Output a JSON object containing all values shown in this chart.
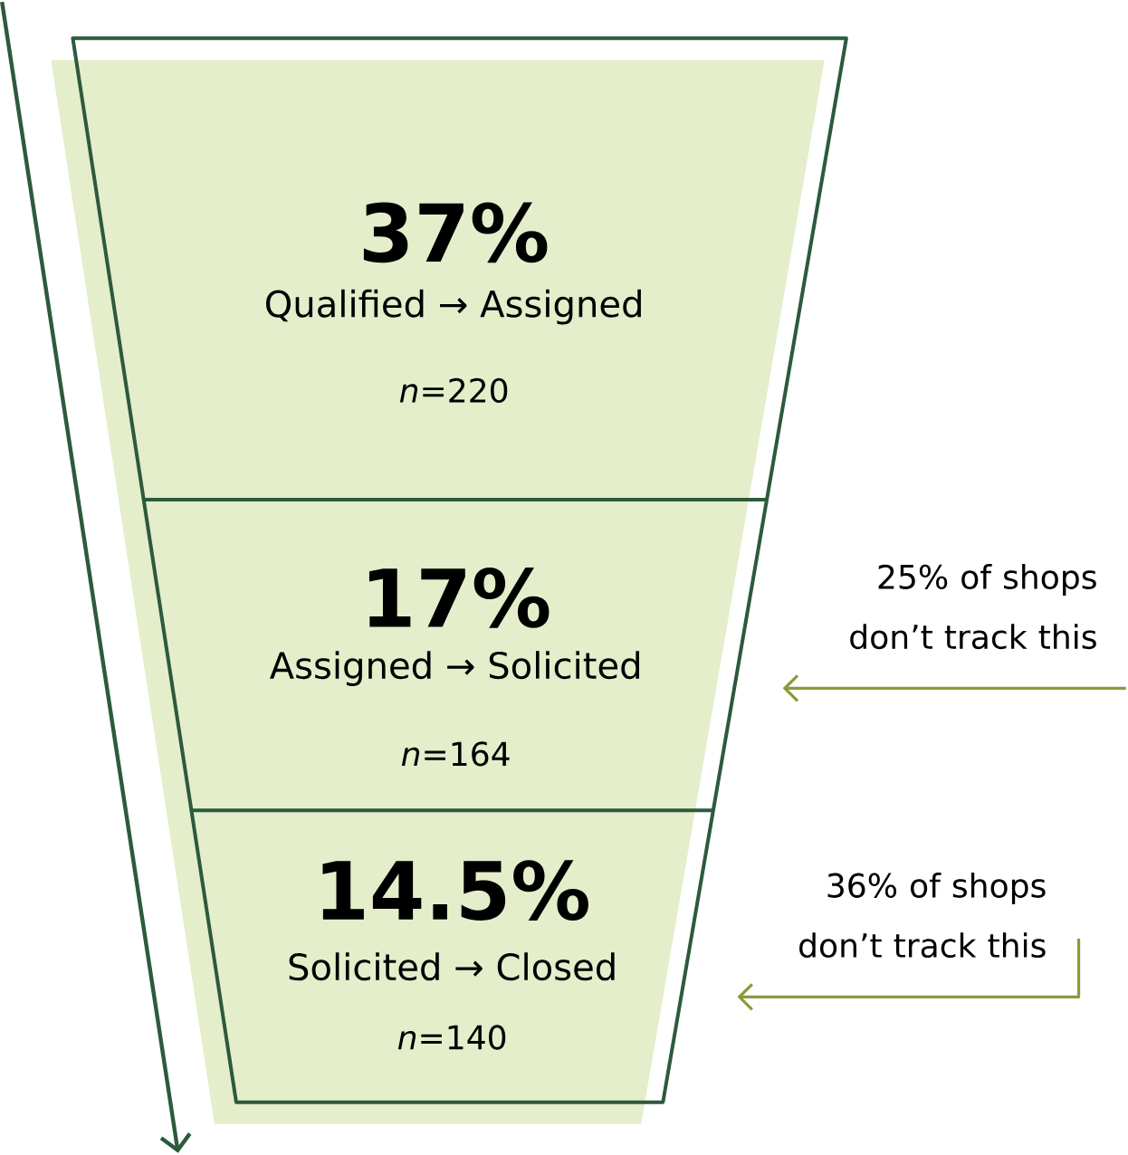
{
  "chart_data": {
    "type": "other",
    "categories": [
      "Qualified → Assigned",
      "Assigned → Solicited",
      "Solicited → Closed"
    ],
    "values": [
      37,
      17,
      14.5
    ],
    "value_labels": [
      "37%",
      "17%",
      "14.5%"
    ],
    "color": "#e4eecb",
    "annotations": [
      "*n*=220",
      "*n*=164",
      "*n*=140",
      "25% of shops don’t track this",
      "36% of shops don’t track this"
    ]
  }
}
